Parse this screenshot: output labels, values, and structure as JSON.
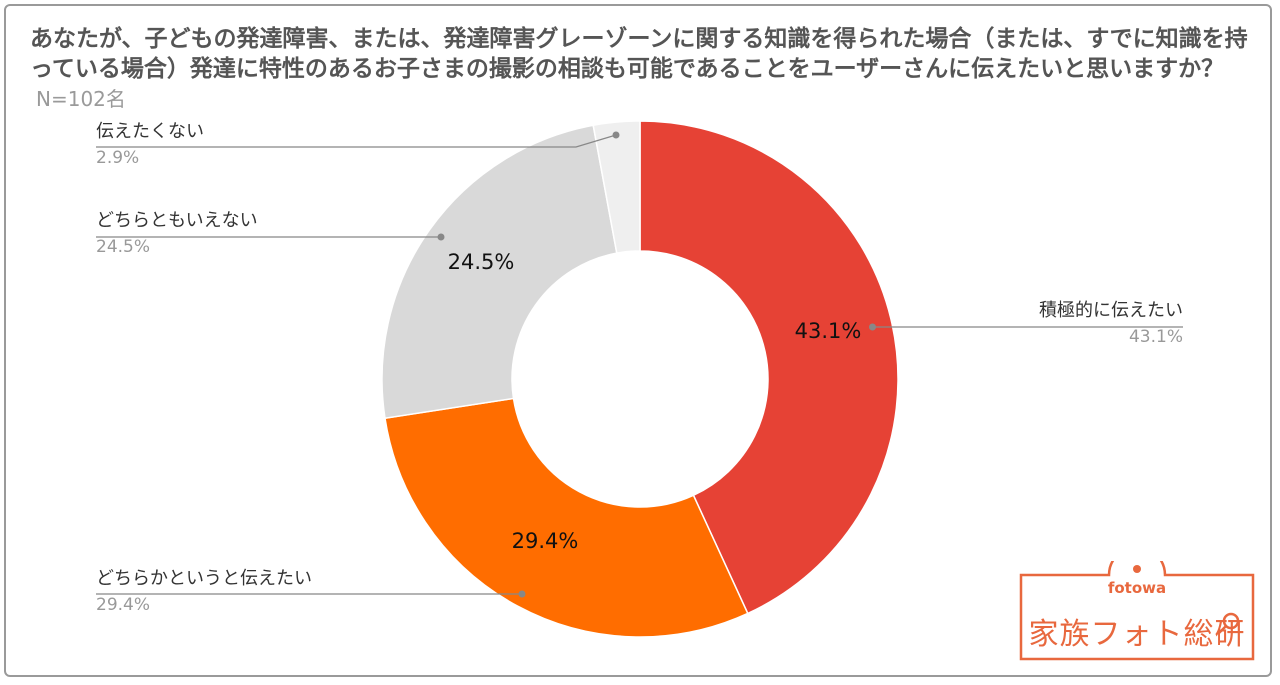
{
  "title": {
    "question": "あなたが、子どもの発達障害、または、発達障害グレーゾーンに関する知識を得られた場合（または、すでに知識を持っている場合）発達に特性のあるお子さまの撮影の相談も可能であることをユーザーさんに伝えたいと思いますか？",
    "sample": "N=102名"
  },
  "chart_data": {
    "type": "pie",
    "donut": true,
    "slices": [
      {
        "label": "積極的に伝えたい",
        "value": 43.1,
        "display": "43.1%",
        "color": "#e64235"
      },
      {
        "label": "どちらかというと伝えたい",
        "value": 29.4,
        "display": "29.4%",
        "color": "#ff6d00"
      },
      {
        "label": "どちらともいえない",
        "value": 24.5,
        "display": "24.5%",
        "color": "#d9d9d9"
      },
      {
        "label": "伝えたくない",
        "value": 2.9,
        "display": "2.9%",
        "color": "#efefef"
      }
    ],
    "start_angle_deg": 0,
    "direction": "clockwise"
  },
  "logo": {
    "sub": "fotowa",
    "main": "家族フォト総研",
    "color": "#e8683e"
  }
}
